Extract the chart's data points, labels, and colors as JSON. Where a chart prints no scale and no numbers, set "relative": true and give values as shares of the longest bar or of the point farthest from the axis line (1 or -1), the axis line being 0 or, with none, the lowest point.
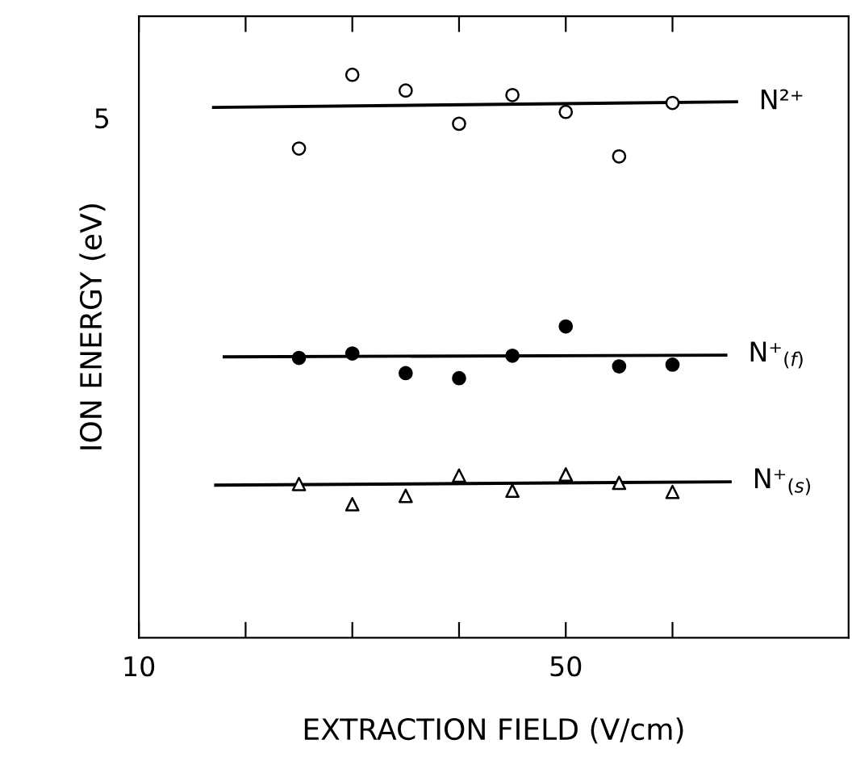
{
  "chart_data": {
    "type": "scatter",
    "xlabel": "EXTRACTION FIELD (V/cm)",
    "ylabel": "ION ENERGY (eV)",
    "relative": true,
    "xlim": [
      10,
      76.5
    ],
    "xticks": [
      10,
      {
        "value": 20,
        "label": null
      },
      {
        "value": 30,
        "label": null
      },
      {
        "value": 40,
        "label": null
      },
      50,
      {
        "value": 60,
        "label": null
      }
    ],
    "annotations": [
      "5"
    ],
    "grid": false,
    "legend": false,
    "series": [
      {
        "marker": "circle",
        "color": "#ffffff",
        "x": [
          25,
          30,
          35,
          40,
          45,
          50,
          55,
          60
        ],
        "values": [
          0.869,
          1.0,
          0.972,
          0.913,
          0.964,
          0.934,
          0.855,
          0.95
        ]
      },
      {
        "type": "line",
        "name": "N²⁺",
        "color": "#000000",
        "x": [
          17,
          66
        ],
        "values": [
          0.942,
          0.952
        ]
      },
      {
        "marker": "circle",
        "color": "#000000",
        "x": [
          25,
          30,
          35,
          40,
          45,
          50,
          55,
          60
        ],
        "values": [
          0.497,
          0.505,
          0.47,
          0.461,
          0.501,
          0.553,
          0.482,
          0.485
        ]
      },
      {
        "type": "line",
        "name": "N⁺$_{(f)}$",
        "color": "#000000",
        "x": [
          18,
          65
        ],
        "values": [
          0.499,
          0.502
        ]
      },
      {
        "marker": "triangle",
        "color": "#ffffff",
        "x": [
          25,
          30,
          35,
          40,
          45,
          50,
          55,
          60
        ],
        "values": [
          0.273,
          0.237,
          0.252,
          0.288,
          0.261,
          0.29,
          0.275,
          0.259
        ]
      },
      {
        "type": "line",
        "name": "N⁺$_{(s)}$",
        "color": "#000000",
        "x": [
          17.2,
          65.4
        ],
        "values": [
          0.271,
          0.277
        ]
      }
    ]
  }
}
